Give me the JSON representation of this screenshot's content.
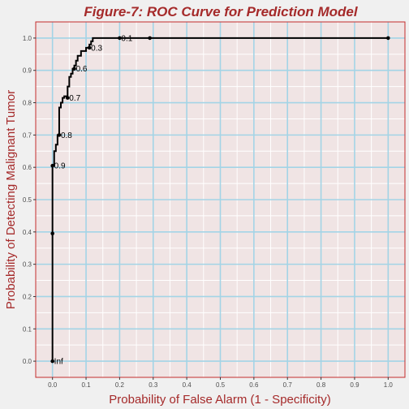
{
  "colors": {
    "background": "#f0f0f0",
    "panel": "#f0e4e4",
    "panel_border": "#c42b2b",
    "grid_major": "#a3d4e6",
    "grid_minor": "#ffffff",
    "title": "#a52a2a",
    "axis_title": "#a52a2a",
    "curve": "#000000"
  },
  "chart_data": {
    "type": "line",
    "title": "Figure-7: ROC Curve for Prediction Model",
    "xlabel": "Probability of False Alarm (1 - Specificity)",
    "ylabel": "Probability of Detecting Malignant Tumor",
    "xlim": [
      -0.05,
      1.05
    ],
    "ylim": [
      -0.05,
      1.05
    ],
    "x_ticks": [
      0.0,
      0.1,
      0.2,
      0.3,
      0.4,
      0.5,
      0.6,
      0.7,
      0.8,
      0.9,
      1.0
    ],
    "x_tick_labels": [
      "0.0",
      "0.1",
      "0.2",
      "0.3",
      "0.4",
      "0.5",
      "0.6",
      "0.7",
      "0.8",
      "0.9",
      "1.0"
    ],
    "y_ticks": [
      0.0,
      0.1,
      0.2,
      0.3,
      0.4,
      0.5,
      0.6,
      0.7,
      0.8,
      0.9,
      1.0
    ],
    "y_tick_labels": [
      "0.0",
      "0.1",
      "0.2",
      "0.3",
      "0.4",
      "0.5",
      "0.6",
      "0.7",
      "0.8",
      "0.9",
      "1.0"
    ],
    "grid": true,
    "curve": {
      "x": [
        0.0,
        0.0,
        0.0,
        0.0,
        0.0,
        0.005,
        0.005,
        0.01,
        0.01,
        0.015,
        0.015,
        0.02,
        0.02,
        0.025,
        0.025,
        0.03,
        0.03,
        0.035,
        0.035,
        0.04,
        0.04,
        0.045,
        0.045,
        0.05,
        0.05,
        0.055,
        0.055,
        0.06,
        0.06,
        0.065,
        0.065,
        0.07,
        0.07,
        0.075,
        0.075,
        0.085,
        0.085,
        0.09,
        0.09,
        0.1,
        0.1,
        0.11,
        0.11,
        0.115,
        0.115,
        0.12,
        0.12,
        0.2,
        0.29,
        1.0
      ],
      "y": [
        0.0,
        0.25,
        0.4,
        0.5,
        0.605,
        0.605,
        0.65,
        0.65,
        0.67,
        0.67,
        0.7,
        0.7,
        0.785,
        0.785,
        0.8,
        0.8,
        0.815,
        0.815,
        0.82,
        0.82,
        0.82,
        0.82,
        0.85,
        0.85,
        0.88,
        0.88,
        0.89,
        0.89,
        0.905,
        0.905,
        0.915,
        0.915,
        0.93,
        0.93,
        0.945,
        0.945,
        0.96,
        0.96,
        0.96,
        0.96,
        0.97,
        0.97,
        0.98,
        0.98,
        0.99,
        0.99,
        1.0,
        1.0,
        1.0,
        1.0
      ]
    },
    "threshold_points": [
      {
        "label": "Inf",
        "x": 0.0,
        "y": 0.0
      },
      {
        "label": "",
        "x": 0.0,
        "y": 0.395
      },
      {
        "label": "0.9",
        "x": 0.0,
        "y": 0.605
      },
      {
        "label": "0.8",
        "x": 0.02,
        "y": 0.7
      },
      {
        "label": "0.7",
        "x": 0.045,
        "y": 0.815
      },
      {
        "label": "0.6",
        "x": 0.065,
        "y": 0.905
      },
      {
        "label": "0.3",
        "x": 0.11,
        "y": 0.97
      },
      {
        "label": "0.1",
        "x": 0.2,
        "y": 1.0
      },
      {
        "label": "",
        "x": 0.29,
        "y": 1.0
      },
      {
        "label": "",
        "x": 1.0,
        "y": 1.0
      }
    ]
  }
}
